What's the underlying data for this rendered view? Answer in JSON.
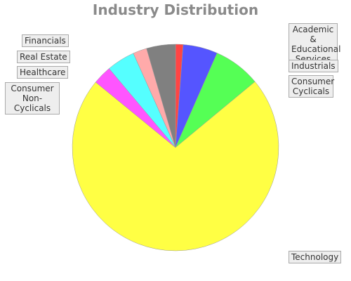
{
  "chart_data": {
    "type": "pie",
    "title": "Industry Distribution",
    "slices": [
      {
        "label": "Academic & Educational Services",
        "value": 1.2,
        "color": "#ff4444"
      },
      {
        "label": "Industrials",
        "value": 5.5,
        "color": "#5555ff"
      },
      {
        "label": "Consumer Cyclicals",
        "value": 7.5,
        "color": "#55ff55"
      },
      {
        "label": "Technology",
        "value": 73.0,
        "color": "#ffff44"
      },
      {
        "label": "Consumer Non-Cyclicals",
        "value": 3.0,
        "color": "#ff55ff"
      },
      {
        "label": "Healthcare",
        "value": 4.5,
        "color": "#55ffff"
      },
      {
        "label": "Real Estate",
        "value": 2.2,
        "color": "#ffaaaa"
      },
      {
        "label": "Financials",
        "value": 4.6,
        "color": "#808080"
      }
    ]
  },
  "labels": {
    "academic": "Academic &\nEducational\nServices",
    "industrials": "Industrials",
    "consumer_cyclicals": "Consumer\nCyclicals",
    "technology": "Technology",
    "consumer_non_cyclicals": "Consumer\nNon-Cyclicals",
    "healthcare": "Healthcare",
    "real_estate": "Real Estate",
    "financials": "Financials"
  }
}
